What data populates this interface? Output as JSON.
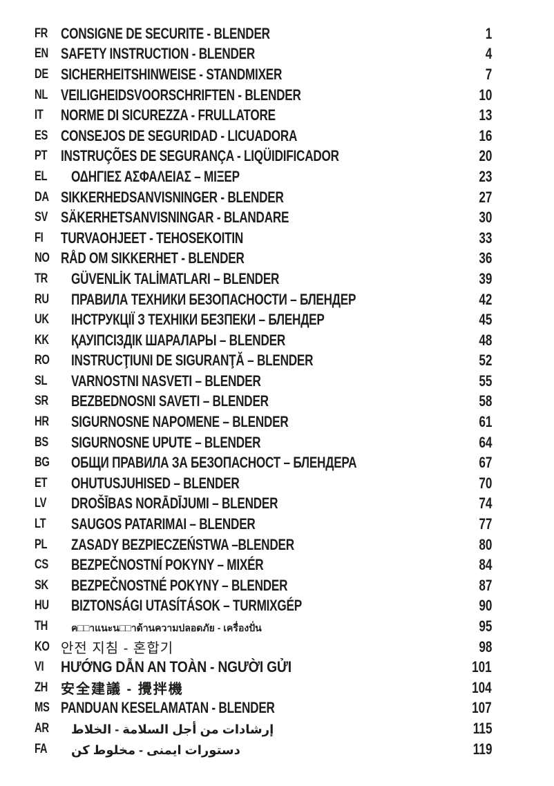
{
  "page": {
    "background_color": "#ffffff",
    "text_color": "#1d1d1b",
    "document_type": "safety-manual-table-of-contents"
  },
  "toc": {
    "rows": [
      {
        "code": "FR",
        "title": "CONSIGNE DE SECURITE - BLENDER",
        "page": "1",
        "indent": "narrow",
        "script": "latin"
      },
      {
        "code": "EN",
        "title": "SAFETY INSTRUCTION - BLENDER",
        "page": "4",
        "indent": "narrow",
        "script": "latin"
      },
      {
        "code": "DE",
        "title": "SICHERHEITSHINWEISE - STANDMIXER",
        "page": "7",
        "indent": "narrow",
        "script": "latin"
      },
      {
        "code": "NL",
        "title": "VEILIGHEIDSVOORSCHRIFTEN - BLENDER",
        "page": "10",
        "indent": "narrow",
        "script": "latin"
      },
      {
        "code": "IT",
        "title": "NORME DI SICUREZZA - FRULLATORE",
        "page": "13",
        "indent": "narrow",
        "script": "latin"
      },
      {
        "code": "ES",
        "title": "CONSEJOS DE SEGURIDAD - LICUADORA",
        "page": "16",
        "indent": "narrow",
        "script": "latin"
      },
      {
        "code": "PT",
        "title": "INSTRUÇÕES DE SEGURANÇA - LIQÜIDIFICADOR",
        "page": "20",
        "indent": "narrow",
        "script": "latin"
      },
      {
        "code": "EL",
        "title": "ΟΔΗΓΙΕΣ ΑΣΦΑΛΕΙΑΣ – ΜΙΞΕΡ",
        "page": "23",
        "indent": "wide",
        "script": "latin"
      },
      {
        "code": "DA",
        "title": "SIKKERHEDSANVISNINGER - BLENDER",
        "page": "27",
        "indent": "narrow",
        "script": "latin"
      },
      {
        "code": "SV",
        "title": "SÄKERHETSANVISNINGAR - BLANDARE",
        "page": "30",
        "indent": "narrow",
        "script": "latin"
      },
      {
        "code": "FI",
        "title": "TURVAOHJEET - TEHOSEKOITIN",
        "page": "33",
        "indent": "narrow",
        "script": "latin"
      },
      {
        "code": "NO",
        "title": "RÅD OM SIKKERHET - BLENDER",
        "page": "36",
        "indent": "narrow",
        "script": "latin"
      },
      {
        "code": "TR",
        "title": "GÜVENLİK TALİMATLARI – BLENDER",
        "page": "39",
        "indent": "wide",
        "script": "latin"
      },
      {
        "code": "RU",
        "title": "ПРАВИЛА ТЕХНИКИ БЕЗОПАСНОСТИ – БЛЕНДЕР",
        "page": "42",
        "indent": "wide",
        "script": "latin"
      },
      {
        "code": "UK",
        "title": "ІНСТРУКЦІЇ З ТЕХНІКИ БЕЗПЕКИ – БЛЕНДЕР",
        "page": "45",
        "indent": "wide",
        "script": "latin"
      },
      {
        "code": "KK",
        "title": "ҚАУІПСІЗДІК ШАРАЛАРЫ – BLENDER",
        "page": "48",
        "indent": "wide",
        "script": "latin"
      },
      {
        "code": "RO",
        "title": "INSTRUCŢIUNI DE SIGURANŢĂ – BLENDER",
        "page": "52",
        "indent": "wide",
        "script": "latin"
      },
      {
        "code": "SL",
        "title": "VARNOSTNI NASVETI – BLENDER",
        "page": "55",
        "indent": "wide",
        "script": "latin"
      },
      {
        "code": "SR",
        "title": "BEZBEDNOSNI SAVETI – BLENDER",
        "page": "58",
        "indent": "wide",
        "script": "latin"
      },
      {
        "code": "HR",
        "title": "SIGURNOSNE NAPOMENE – BLENDER",
        "page": "61",
        "indent": "wide",
        "script": "latin"
      },
      {
        "code": "BS",
        "title": "SIGURNOSNE UPUTE – BLENDER",
        "page": "64",
        "indent": "wide",
        "script": "latin"
      },
      {
        "code": "BG",
        "title": "ОБЩИ ПРАВИЛА ЗА БЕЗОПАСНОСТ – БЛЕНДЕРА",
        "page": "67",
        "indent": "wide",
        "script": "latin"
      },
      {
        "code": "ET",
        "title": "OHUTUSJUHISED – BLENDER",
        "page": "70",
        "indent": "wide",
        "script": "latin"
      },
      {
        "code": "LV",
        "title": "DROŠĪBAS NORĀDĪJUMI – BLENDER",
        "page": "74",
        "indent": "wide",
        "script": "latin"
      },
      {
        "code": "LT",
        "title": "SAUGOS PATARIMAI – BLENDER",
        "page": "77",
        "indent": "wide",
        "script": "latin"
      },
      {
        "code": "PL",
        "title": "ZASADY BEZPIECZEŃSTWA –BLENDER",
        "page": "80",
        "indent": "wide",
        "script": "latin"
      },
      {
        "code": "CS",
        "title": "BEZPEČNOSTNÍ POKYNY – MIXÉR",
        "page": "84",
        "indent": "wide",
        "script": "latin"
      },
      {
        "code": "SK",
        "title": "BEZPEČNOSTNÉ POKYNY – BLENDER",
        "page": "87",
        "indent": "wide",
        "script": "latin"
      },
      {
        "code": "HU",
        "title": "BIZTONSÁGI UTASÍTÁSOK – TURMIXGÉP",
        "page": "90",
        "indent": "wide",
        "script": "latin"
      },
      {
        "code": "TH",
        "title": "ค□□าแนะน□□าด้านความปลอดภัย - เครื่องปั่น",
        "page": "95",
        "indent": "wide",
        "script": "thai"
      },
      {
        "code": "KO",
        "title": "안전 지침 - 혼합기",
        "page": "98",
        "indent": "narrow",
        "script": "cjk-light"
      },
      {
        "code": "VI",
        "title": "HƯỚNG DẪN AN TOÀN - NGƯỜI GỬI",
        "page": "101",
        "indent": "narrow",
        "script": "viet"
      },
      {
        "code": "ZH",
        "title": "安全建議 - 攪拌機",
        "page": "104",
        "indent": "narrow",
        "script": "cjk"
      },
      {
        "code": "MS",
        "title": "PANDUAN KESELAMATAN - BLENDER",
        "page": "107",
        "indent": "narrow",
        "script": "latin"
      },
      {
        "code": "AR",
        "title": "إرشادات من أجل السلامة - الخلاط",
        "page": "115",
        "indent": "wide",
        "script": "rtl"
      },
      {
        "code": "FA",
        "title": "دستورات ايمنى - مخلوط كن",
        "page": "119",
        "indent": "wide",
        "script": "rtl"
      }
    ]
  }
}
